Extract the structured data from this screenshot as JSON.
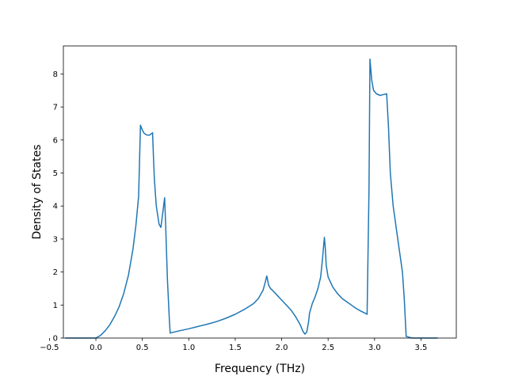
{
  "chart_data": {
    "type": "line",
    "title": "",
    "xlabel": "Frequency (THz)",
    "ylabel": "Density of States",
    "xlim": [
      -0.35,
      3.88
    ],
    "ylim": [
      0,
      8.85
    ],
    "xticks": [
      -0.5,
      0.0,
      0.5,
      1.0,
      1.5,
      2.0,
      2.5,
      3.0,
      3.5
    ],
    "xtick_labels": [
      "−0.5",
      "0.0",
      "0.5",
      "1.0",
      "1.5",
      "2.0",
      "2.5",
      "3.0",
      "3.5"
    ],
    "yticks": [
      0,
      1,
      2,
      3,
      4,
      5,
      6,
      7,
      8
    ],
    "ytick_labels": [
      "0",
      "1",
      "2",
      "3",
      "4",
      "5",
      "6",
      "7",
      "8"
    ],
    "grid": false,
    "line_color": "#1f77b4",
    "series": [
      {
        "x": [
          -0.33,
          -0.1,
          0.0,
          0.05,
          0.1,
          0.15,
          0.2,
          0.25,
          0.3,
          0.35,
          0.4,
          0.43,
          0.46,
          0.48,
          0.5,
          0.52,
          0.55,
          0.58,
          0.61,
          0.62,
          0.63,
          0.65,
          0.68,
          0.7,
          0.72,
          0.74,
          0.75,
          0.77,
          0.79,
          0.8,
          0.9,
          1.0,
          1.1,
          1.2,
          1.3,
          1.4,
          1.5,
          1.6,
          1.7,
          1.75,
          1.8,
          1.82,
          1.84,
          1.86,
          1.88,
          1.9,
          1.95,
          2.0,
          2.05,
          2.1,
          2.15,
          2.2,
          2.23,
          2.25,
          2.27,
          2.29,
          2.3,
          2.33,
          2.36,
          2.39,
          2.42,
          2.44,
          2.46,
          2.47,
          2.48,
          2.5,
          2.55,
          2.6,
          2.65,
          2.7,
          2.75,
          2.8,
          2.85,
          2.9,
          2.92,
          2.94,
          2.95,
          2.97,
          2.99,
          3.02,
          3.06,
          3.1,
          3.13,
          3.15,
          3.17,
          3.2,
          3.25,
          3.3,
          3.32,
          3.34,
          3.4,
          3.5,
          3.68
        ],
        "y": [
          0.0,
          0.0,
          0.0,
          0.08,
          0.22,
          0.4,
          0.65,
          0.95,
          1.35,
          1.9,
          2.7,
          3.4,
          4.3,
          6.45,
          6.3,
          6.2,
          6.15,
          6.15,
          6.22,
          5.5,
          4.8,
          4.0,
          3.45,
          3.35,
          3.8,
          4.25,
          3.5,
          1.8,
          0.6,
          0.15,
          0.22,
          0.28,
          0.35,
          0.42,
          0.5,
          0.6,
          0.72,
          0.87,
          1.05,
          1.2,
          1.45,
          1.65,
          1.88,
          1.6,
          1.5,
          1.45,
          1.3,
          1.15,
          1.0,
          0.85,
          0.65,
          0.4,
          0.2,
          0.12,
          0.18,
          0.5,
          0.75,
          1.05,
          1.25,
          1.5,
          1.85,
          2.4,
          3.05,
          2.7,
          2.2,
          1.85,
          1.55,
          1.35,
          1.2,
          1.1,
          1.0,
          0.9,
          0.82,
          0.75,
          0.72,
          4.5,
          8.45,
          7.8,
          7.5,
          7.4,
          7.35,
          7.38,
          7.4,
          6.4,
          5.0,
          4.0,
          3.0,
          2.0,
          1.2,
          0.05,
          0.0,
          0.0,
          0.0
        ]
      }
    ]
  }
}
